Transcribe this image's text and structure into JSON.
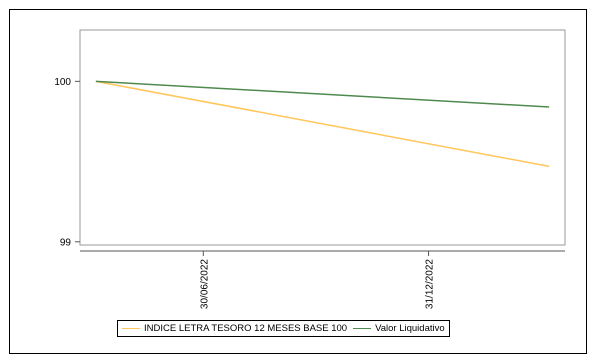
{
  "chart_data": {
    "type": "line",
    "title": "",
    "xlabel": "",
    "ylabel": "",
    "x": [
      0,
      100
    ],
    "x_range": [
      -3.5,
      103.5
    ],
    "x_ticks": [
      {
        "label": "30/06/2022",
        "pos": 23.7
      },
      {
        "label": "31/12/2022",
        "pos": 73.4
      }
    ],
    "ylim": [
      98.98,
      100.32
    ],
    "y_ticks": [
      99,
      100
    ],
    "grid": false,
    "legend_position": "bottom",
    "series": [
      {
        "name": "INDICE LETRA TESORO 12 MESES BASE 100",
        "color": "#ffc65a",
        "values": [
          100.0,
          99.47
        ]
      },
      {
        "name": "Valor Liquidativo",
        "color": "#4e8a4e",
        "values": [
          100.0,
          99.84
        ]
      }
    ]
  }
}
